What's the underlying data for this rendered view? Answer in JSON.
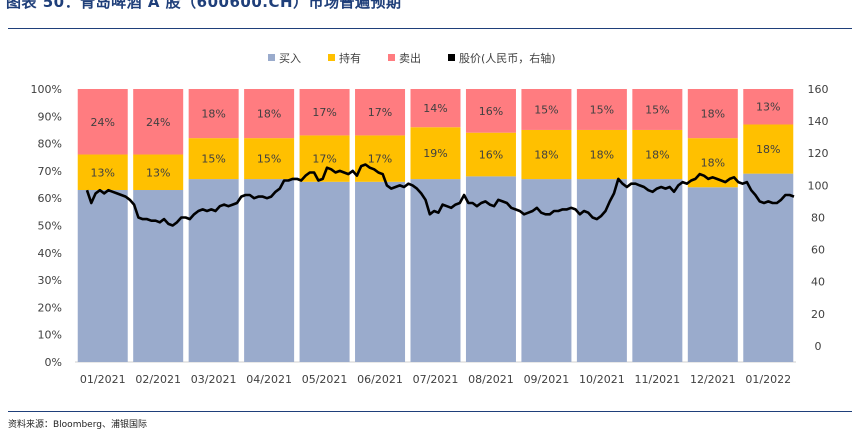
{
  "figure": {
    "title": "图表 50：青岛啤酒 A 股（600600.CH）市场普遍预期",
    "source": "资料来源：Bloomberg、浦银国际"
  },
  "chart_data": {
    "type": "bar",
    "stacked": true,
    "categories": [
      "01/2021",
      "02/2021",
      "03/2021",
      "04/2021",
      "05/2021",
      "06/2021",
      "07/2021",
      "08/2021",
      "09/2021",
      "10/2021",
      "11/2021",
      "12/2021",
      "01/2022"
    ],
    "series": [
      {
        "name": "买入",
        "color": "#9aabcc",
        "values": [
          63,
          63,
          67,
          67,
          66,
          66,
          67,
          68,
          67,
          67,
          67,
          64,
          69
        ]
      },
      {
        "name": "持有",
        "color": "#ffc000",
        "values": [
          13,
          13,
          15,
          15,
          17,
          17,
          19,
          16,
          18,
          18,
          18,
          18,
          18
        ],
        "labels": [
          "13%",
          "13%",
          "15%",
          "15%",
          "17%",
          "17%",
          "19%",
          "16%",
          "18%",
          "18%",
          "18%",
          "18%",
          "18%"
        ]
      },
      {
        "name": "卖出",
        "color": "#ff7c80",
        "values": [
          24,
          24,
          18,
          18,
          17,
          17,
          14,
          16,
          15,
          15,
          15,
          18,
          13
        ],
        "labels": [
          "24%",
          "24%",
          "18%",
          "18%",
          "17%",
          "17%",
          "14%",
          "16%",
          "15%",
          "15%",
          "15%",
          "18%",
          "13%"
        ]
      }
    ],
    "line": {
      "name": "股价(人民币，右轴)",
      "color": "#000000",
      "values": [
        97,
        89,
        95,
        97,
        95,
        97,
        96,
        95,
        94,
        93,
        91,
        88,
        80,
        79,
        79,
        78,
        78,
        77,
        79,
        76,
        75,
        77,
        80,
        80,
        79,
        82,
        84,
        85,
        84,
        85,
        84,
        87,
        88,
        87,
        88,
        89,
        93,
        94,
        94,
        92,
        93,
        93,
        92,
        93,
        96,
        98,
        103,
        103,
        104,
        104,
        103,
        106,
        108,
        108,
        103,
        104,
        111,
        110,
        108,
        109,
        108,
        107,
        109,
        106,
        112,
        113,
        111,
        110,
        108,
        107,
        100,
        98,
        99,
        100,
        99,
        101,
        100,
        98,
        95,
        91,
        82,
        84,
        83,
        88,
        87,
        86,
        88,
        89,
        94,
        89,
        89,
        87,
        89,
        90,
        88,
        87,
        91,
        90,
        89,
        86,
        85,
        84,
        82,
        83,
        84,
        86,
        83,
        82,
        82,
        84,
        84,
        85,
        85,
        86,
        85,
        82,
        84,
        83,
        80,
        79,
        81,
        84,
        90,
        95,
        104,
        101,
        99,
        101,
        101,
        100,
        99,
        97,
        96,
        98,
        99,
        98,
        99,
        96,
        100,
        102,
        101,
        103,
        104,
        107,
        106,
        104,
        105,
        104,
        103,
        102,
        104,
        105,
        102,
        101,
        102,
        97,
        94,
        90,
        89,
        90,
        89,
        89,
        91,
        94,
        94,
        93
      ],
      "show_x_points": true
    },
    "y_left": {
      "min": 0,
      "max": 100,
      "ticks": [
        "0%",
        "10%",
        "20%",
        "30%",
        "40%",
        "50%",
        "60%",
        "70%",
        "80%",
        "90%",
        "100%"
      ]
    },
    "y_right": {
      "min": -10,
      "max": 160,
      "ticks": [
        "0",
        "20",
        "40",
        "60",
        "80",
        "100",
        "120",
        "140",
        "160"
      ],
      "tick_values": [
        0,
        20,
        40,
        60,
        80,
        100,
        120,
        140,
        160
      ]
    },
    "legend": {
      "position": "top",
      "items": [
        "买入",
        "持有",
        "卖出",
        "股价(人民币，右轴)"
      ]
    }
  }
}
